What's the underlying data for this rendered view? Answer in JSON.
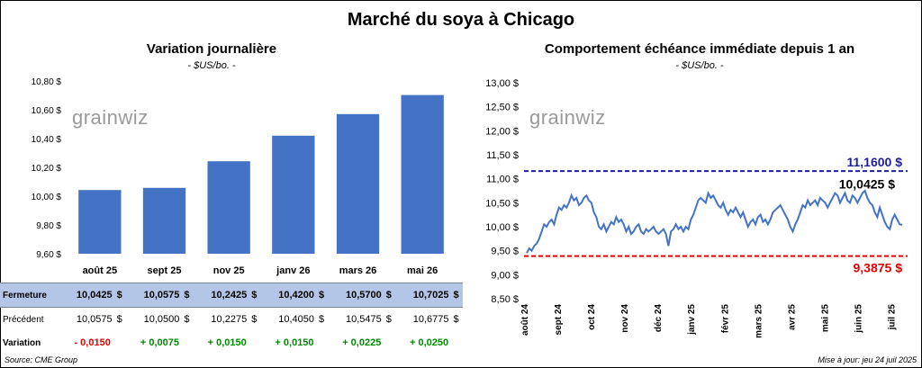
{
  "title": "Marché du soya à Chicago",
  "left_chart": {
    "title": "Variation journalière",
    "subtitle": "- $US/bo. -"
  },
  "right_chart": {
    "title": "Comportement échéance immédiate depuis 1 an",
    "subtitle": "- $US/bo. -"
  },
  "logo_text": "grainwiz",
  "footer": {
    "source": "Source: CME Group",
    "updated": "Mise à jour: jeu 24 juil 2025"
  },
  "colors": {
    "bar": "#4472c4",
    "line": "#4472c4",
    "high_line": "#1f1f9e",
    "low_line": "#e00000",
    "fermeture_row": "#b4c6e7"
  },
  "table": {
    "rows": [
      {
        "label": "Fermeture",
        "values": [
          "10,0425",
          "10,0575",
          "10,2425",
          "10,4200",
          "10,5700",
          "10,7025"
        ],
        "unit": "$"
      },
      {
        "label": "Précédent",
        "values": [
          "10,0575",
          "10,0500",
          "10,2275",
          "10,4050",
          "10,5475",
          "10,6775"
        ],
        "unit": "$"
      }
    ],
    "variation": {
      "label": "Variation",
      "values": [
        "- 0,0150",
        "+ 0,0075",
        "+ 0,0150",
        "+ 0,0150",
        "+ 0,0225",
        "+ 0,0250"
      ]
    }
  },
  "chart_data": [
    {
      "type": "bar",
      "categories": [
        "août 25",
        "sept 25",
        "nov 25",
        "janv 26",
        "mars 26",
        "mai 26"
      ],
      "values": [
        10.0425,
        10.0575,
        10.2425,
        10.42,
        10.57,
        10.7025
      ],
      "ylim": [
        9.6,
        10.8
      ],
      "yticks": [
        "9,60 $",
        "9,80 $",
        "10,00 $",
        "10,20 $",
        "10,40 $",
        "10,60 $",
        "10,80 $"
      ],
      "grid": false
    },
    {
      "type": "line",
      "x_labels": [
        "août 24",
        "sept 24",
        "oct 24",
        "nov 24",
        "déc 24",
        "janv 25",
        "févr 25",
        "mars 25",
        "avr 25",
        "mai 25",
        "juin 25",
        "juil 25"
      ],
      "ylim": [
        8.5,
        13.0
      ],
      "yticks": [
        "8,50 $",
        "9,00 $",
        "9,50 $",
        "10,00 $",
        "10,50 $",
        "11,00 $",
        "11,50 $",
        "12,00 $",
        "12,50 $",
        "13,00 $"
      ],
      "values": [
        9.45,
        9.55,
        9.5,
        9.6,
        9.65,
        9.75,
        9.9,
        10.05,
        10.0,
        10.1,
        10.15,
        10.05,
        10.25,
        10.4,
        10.35,
        10.45,
        10.4,
        10.5,
        10.65,
        10.55,
        10.6,
        10.45,
        10.5,
        10.6,
        10.65,
        10.55,
        10.5,
        10.3,
        10.2,
        10.0,
        9.95,
        10.05,
        9.9,
        10.0,
        10.1,
        10.05,
        10.2,
        10.1,
        10.15,
        10.05,
        9.9,
        10.0,
        9.85,
        9.9,
        10.0,
        10.05,
        9.9,
        9.85,
        9.95,
        9.9,
        9.95,
        10.0,
        9.9,
        9.85,
        9.9,
        9.95,
        9.85,
        9.6,
        9.9,
        9.95,
        10.05,
        9.95,
        10.0,
        9.9,
        10.0,
        9.95,
        10.15,
        10.25,
        10.4,
        10.55,
        10.6,
        10.55,
        10.5,
        10.7,
        10.6,
        10.65,
        10.55,
        10.45,
        10.4,
        10.5,
        10.35,
        10.25,
        10.35,
        10.3,
        10.4,
        10.3,
        10.2,
        10.3,
        10.15,
        10.0,
        10.1,
        10.15,
        10.05,
        10.2,
        10.25,
        10.1,
        10.15,
        10.05,
        10.15,
        10.3,
        10.35,
        10.4,
        10.45,
        10.35,
        10.25,
        10.15,
        10.0,
        9.9,
        10.05,
        10.15,
        10.3,
        10.45,
        10.4,
        10.55,
        10.45,
        10.5,
        10.55,
        10.45,
        10.6,
        10.55,
        10.5,
        10.4,
        10.5,
        10.6,
        10.7,
        10.65,
        10.5,
        10.6,
        10.7,
        10.55,
        10.5,
        10.65,
        10.6,
        10.5,
        10.6,
        10.7,
        10.75,
        10.6,
        10.5,
        10.45,
        10.3,
        10.2,
        10.4,
        10.25,
        10.1,
        10.0,
        9.95,
        10.15,
        10.25,
        10.15,
        10.05,
        10.04
      ],
      "series_end_label": "10,0425 $",
      "reference_lines": [
        {
          "label": "11,1600 $",
          "value": 11.16
        },
        {
          "label": "9,3875 $",
          "value": 9.3875
        }
      ]
    }
  ]
}
